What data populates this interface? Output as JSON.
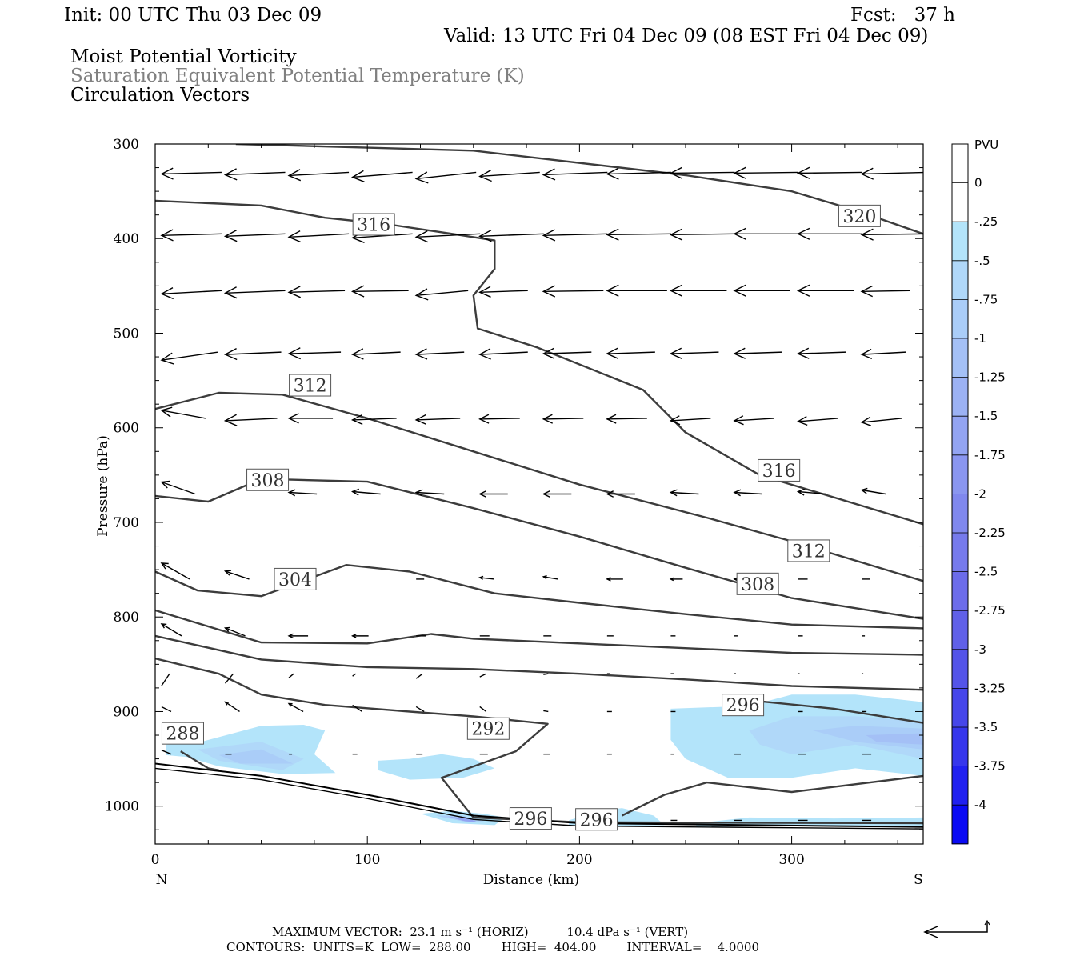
{
  "header": {
    "init": "Init: 00 UTC Thu 03 Dec 09",
    "fcst": "Fcst:   37 h",
    "valid": "Valid: 13 UTC Fri 04 Dec 09 (08 EST Fri 04 Dec 09)",
    "line1": "Moist Potential Vorticity",
    "line2": "Saturation Equivalent Potential Temperature (K)",
    "line3": "Circulation Vectors"
  },
  "footer": {
    "maxvec": "MAXIMUM VECTOR:  23.1 m s⁻¹ (HORIZ)          10.4 dPa s⁻¹ (VERT)",
    "contours": "CONTOURS:  UNITS=K  LOW=  288.00        HIGH=  404.00        INTERVAL=    4.0000"
  },
  "chart_data": {
    "type": "cross-section",
    "xlabel": "Distance (km)",
    "ylabel": "Pressure (hPa)",
    "xlim": [
      0,
      362
    ],
    "ylim": [
      1040,
      300
    ],
    "xticks": [
      0,
      100,
      200,
      300
    ],
    "yticks": [
      300,
      400,
      500,
      600,
      700,
      800,
      900,
      1000
    ],
    "left_end_label": "N",
    "right_end_label": "S",
    "colorbar": {
      "units": "PVU",
      "ticks": [
        "0",
        "-.25",
        "-.5",
        "-.75",
        "-1",
        "-1.25",
        "-1.5",
        "-1.75",
        "-2",
        "-2.25",
        "-2.5",
        "-2.75",
        "-3",
        "-3.25",
        "-3.5",
        "-3.75",
        "-4"
      ],
      "colors": [
        "#ffffff",
        "#ffffff",
        "#b3e4fa",
        "#b0d8f9",
        "#aacdf8",
        "#a4c0f6",
        "#9cb2f4",
        "#93a4f2",
        "#8a96f0",
        "#8088ee",
        "#767aec",
        "#6c6cea",
        "#6060e8",
        "#5454e8",
        "#4646ea",
        "#3636ec",
        "#2020f0",
        "#0a0af4"
      ]
    },
    "contour_labels": [
      {
        "text": "316",
        "x": 103,
        "p": 385
      },
      {
        "text": "320",
        "x": 332,
        "p": 376
      },
      {
        "text": "312",
        "x": 73,
        "p": 555
      },
      {
        "text": "316",
        "x": 294,
        "p": 645
      },
      {
        "text": "308",
        "x": 53,
        "p": 655
      },
      {
        "text": "312",
        "x": 308,
        "p": 730
      },
      {
        "text": "304",
        "x": 66,
        "p": 760
      },
      {
        "text": "308",
        "x": 284,
        "p": 765
      },
      {
        "text": "296",
        "x": 277,
        "p": 893
      },
      {
        "text": "292",
        "x": 157,
        "p": 918
      },
      {
        "text": "288",
        "x": 13,
        "p": 923
      },
      {
        "text": "296",
        "x": 177,
        "p": 1013
      },
      {
        "text": "296",
        "x": 208,
        "p": 1014
      }
    ],
    "theta_contours": [
      {
        "value": 320,
        "points": [
          [
            38,
            300
          ],
          [
            150,
            307
          ],
          [
            250,
            333
          ],
          [
            300,
            350
          ],
          [
            330,
            370
          ],
          [
            362,
            395
          ]
        ]
      },
      {
        "value": 316,
        "points": [
          [
            0,
            360
          ],
          [
            50,
            365
          ],
          [
            80,
            378
          ],
          [
            110,
            385
          ],
          [
            140,
            395
          ],
          [
            160,
            402
          ],
          [
            160,
            432
          ],
          [
            150,
            460
          ],
          [
            152,
            495
          ],
          [
            180,
            515
          ],
          [
            230,
            560
          ],
          [
            250,
            605
          ],
          [
            285,
            650
          ],
          [
            362,
            702
          ]
        ]
      },
      {
        "value": 312,
        "points": [
          [
            0,
            580
          ],
          [
            30,
            563
          ],
          [
            60,
            565
          ],
          [
            100,
            590
          ],
          [
            150,
            625
          ],
          [
            200,
            660
          ],
          [
            260,
            695
          ],
          [
            300,
            720
          ],
          [
            362,
            762
          ]
        ]
      },
      {
        "value": 308,
        "points": [
          [
            0,
            672
          ],
          [
            25,
            678
          ],
          [
            50,
            654
          ],
          [
            100,
            657
          ],
          [
            150,
            685
          ],
          [
            200,
            715
          ],
          [
            250,
            748
          ],
          [
            300,
            780
          ],
          [
            362,
            802
          ]
        ]
      },
      {
        "value": 304,
        "points": [
          [
            0,
            752
          ],
          [
            20,
            772
          ],
          [
            50,
            778
          ],
          [
            90,
            745
          ],
          [
            120,
            752
          ],
          [
            160,
            775
          ],
          [
            200,
            785
          ],
          [
            250,
            797
          ],
          [
            300,
            808
          ],
          [
            362,
            812
          ]
        ]
      },
      {
        "value": 300,
        "points": [
          [
            0,
            793
          ],
          [
            50,
            827
          ],
          [
            100,
            828
          ],
          [
            130,
            818
          ],
          [
            150,
            823
          ],
          [
            200,
            828
          ],
          [
            300,
            838
          ],
          [
            362,
            840
          ]
        ]
      },
      {
        "value": 296,
        "points": [
          [
            0,
            820
          ],
          [
            50,
            845
          ],
          [
            100,
            853
          ],
          [
            150,
            855
          ],
          [
            200,
            860
          ],
          [
            250,
            866
          ],
          [
            300,
            873
          ],
          [
            362,
            877
          ]
        ]
      },
      {
        "value": 292,
        "points": [
          [
            0,
            844
          ],
          [
            30,
            860
          ],
          [
            50,
            882
          ],
          [
            80,
            893
          ],
          [
            120,
            900
          ],
          [
            150,
            905
          ],
          [
            185,
            913
          ],
          [
            170,
            942
          ],
          [
            135,
            970
          ],
          [
            150,
            1012
          ],
          [
            200,
            1017
          ],
          [
            362,
            1018
          ]
        ]
      },
      {
        "value": 296,
        "points": [
          [
            220,
            1010
          ],
          [
            240,
            988
          ],
          [
            260,
            975
          ],
          [
            300,
            985
          ],
          [
            362,
            968
          ]
        ]
      },
      {
        "value": 296,
        "points": [
          [
            280,
            888
          ],
          [
            320,
            897
          ],
          [
            362,
            912
          ]
        ]
      },
      {
        "value": 288,
        "points": [
          [
            12,
            942
          ],
          [
            25,
            960
          ],
          [
            30,
            962
          ]
        ]
      }
    ],
    "ground": {
      "points": [
        [
          0,
          955
        ],
        [
          50,
          968
        ],
        [
          100,
          988
        ],
        [
          150,
          1010
        ],
        [
          200,
          1018
        ],
        [
          362,
          1022
        ]
      ]
    },
    "ground_inner": {
      "points": [
        [
          0,
          960
        ],
        [
          50,
          972
        ],
        [
          100,
          992
        ],
        [
          150,
          1014
        ],
        [
          200,
          1021
        ],
        [
          362,
          1024
        ]
      ]
    },
    "pv_shading": [
      {
        "level": 1,
        "points": [
          [
            5,
            935
          ],
          [
            20,
            933
          ],
          [
            50,
            915
          ],
          [
            70,
            914
          ],
          [
            80,
            920
          ],
          [
            75,
            945
          ],
          [
            85,
            965
          ],
          [
            60,
            966
          ],
          [
            30,
            958
          ],
          [
            15,
            948
          ],
          [
            5,
            946
          ]
        ]
      },
      {
        "level": 2,
        "points": [
          [
            20,
            940
          ],
          [
            50,
            932
          ],
          [
            70,
            950
          ],
          [
            60,
            962
          ],
          [
            30,
            952
          ]
        ]
      },
      {
        "level": 3,
        "points": [
          [
            30,
            946
          ],
          [
            50,
            940
          ],
          [
            65,
            955
          ],
          [
            40,
            955
          ]
        ]
      },
      {
        "level": 1,
        "points": [
          [
            105,
            952
          ],
          [
            120,
            950
          ],
          [
            135,
            945
          ],
          [
            150,
            950
          ],
          [
            160,
            960
          ],
          [
            145,
            970
          ],
          [
            120,
            972
          ],
          [
            105,
            962
          ]
        ]
      },
      {
        "level": 1,
        "points": [
          [
            243,
            897
          ],
          [
            280,
            894
          ],
          [
            300,
            882
          ],
          [
            330,
            882
          ],
          [
            362,
            890
          ],
          [
            362,
            968
          ],
          [
            330,
            960
          ],
          [
            300,
            970
          ],
          [
            270,
            970
          ],
          [
            250,
            950
          ],
          [
            243,
            930
          ]
        ]
      },
      {
        "level": 2,
        "points": [
          [
            280,
            920
          ],
          [
            300,
            905
          ],
          [
            330,
            905
          ],
          [
            362,
            910
          ],
          [
            362,
            950
          ],
          [
            330,
            935
          ],
          [
            300,
            945
          ],
          [
            285,
            935
          ]
        ]
      },
      {
        "level": 3,
        "points": [
          [
            310,
            920
          ],
          [
            330,
            915
          ],
          [
            362,
            918
          ],
          [
            362,
            940
          ],
          [
            330,
            932
          ]
        ]
      },
      {
        "level": 4,
        "points": [
          [
            335,
            925
          ],
          [
            360,
            923
          ],
          [
            362,
            935
          ],
          [
            340,
            932
          ]
        ]
      },
      {
        "level": 1,
        "points": [
          [
            125,
            1008
          ],
          [
            140,
            1005
          ],
          [
            155,
            1008
          ],
          [
            165,
            1012
          ],
          [
            160,
            1020
          ],
          [
            140,
            1018
          ]
        ]
      },
      {
        "level": 3,
        "points": [
          [
            132,
            1010
          ],
          [
            145,
            1010
          ],
          [
            155,
            1016
          ],
          [
            145,
            1016
          ]
        ]
      },
      {
        "level": 6,
        "points": [
          [
            138,
            1011
          ],
          [
            148,
            1013
          ],
          [
            152,
            1017
          ],
          [
            146,
            1016
          ]
        ]
      },
      {
        "level": 1,
        "points": [
          [
            195,
            1015
          ],
          [
            210,
            1005
          ],
          [
            220,
            1002
          ],
          [
            235,
            1010
          ],
          [
            240,
            1020
          ],
          [
            215,
            1021
          ],
          [
            195,
            1021
          ]
        ]
      },
      {
        "level": 1,
        "points": [
          [
            255,
            1018
          ],
          [
            280,
            1012
          ],
          [
            320,
            1013
          ],
          [
            362,
            1012
          ],
          [
            362,
            1021
          ],
          [
            300,
            1021
          ],
          [
            255,
            1022
          ]
        ]
      }
    ],
    "vectors_note": "Circulation vectors drawn at a regular grid; mostly westward (pointing left) aloft, weak near the surface."
  }
}
